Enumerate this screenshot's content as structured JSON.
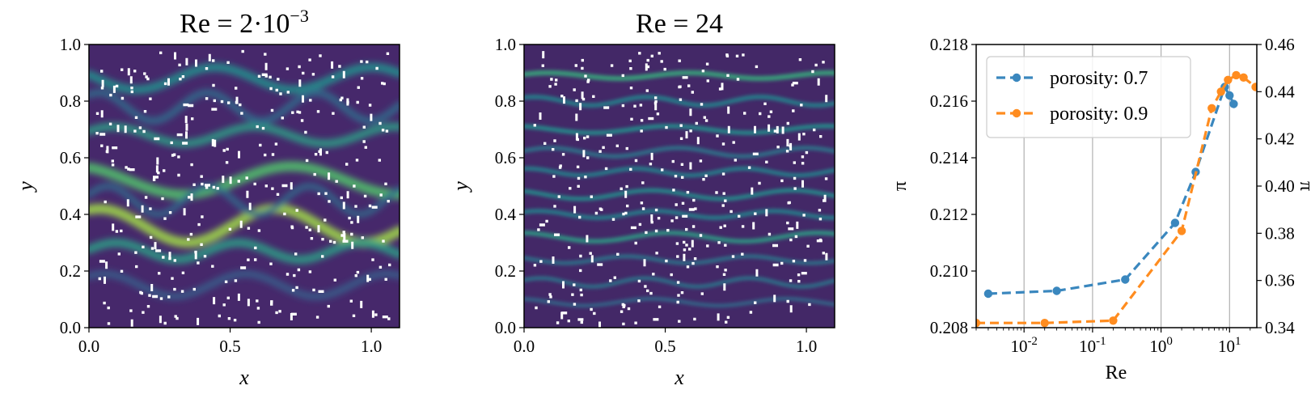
{
  "chart_data": [
    {
      "type": "heatmap",
      "title": "Re = 2·10",
      "title_exp": "−3",
      "xlabel": "x",
      "ylabel": "y",
      "xlim": [
        0.0,
        1.1
      ],
      "ylim": [
        0.0,
        1.0
      ],
      "xticks": [
        "0.0",
        "0.5",
        "1.0"
      ],
      "yticks": [
        "0.0",
        "0.2",
        "0.4",
        "0.6",
        "0.8",
        "1.0"
      ],
      "colormap": [
        "#440154",
        "#3b528b",
        "#21908d",
        "#5dc863",
        "#fde725"
      ],
      "channels": [
        {
          "y0": 0.68,
          "amp": 0.03,
          "freq": 2.0,
          "phase": 0.5,
          "w": 0.028,
          "a": 0.55
        },
        {
          "y0": 0.36,
          "amp": 0.06,
          "freq": 1.6,
          "phase": 1.2,
          "w": 0.035,
          "a": 0.85
        },
        {
          "y0": 0.52,
          "amp": 0.05,
          "freq": 1.3,
          "phase": 2.0,
          "w": 0.035,
          "a": 0.7
        },
        {
          "y0": 0.27,
          "amp": 0.03,
          "freq": 2.3,
          "phase": 0.2,
          "w": 0.03,
          "a": 0.55
        },
        {
          "y0": 0.88,
          "amp": 0.04,
          "freq": 1.8,
          "phase": 2.8,
          "w": 0.03,
          "a": 0.5
        },
        {
          "y0": 0.78,
          "amp": 0.05,
          "freq": 2.6,
          "phase": 1.0,
          "w": 0.025,
          "a": 0.35
        },
        {
          "y0": 0.15,
          "amp": 0.04,
          "freq": 2.0,
          "phase": 0.9,
          "w": 0.025,
          "a": 0.3
        },
        {
          "y0": 0.45,
          "amp": 0.05,
          "freq": 2.8,
          "phase": 0.4,
          "w": 0.022,
          "a": 0.35
        }
      ]
    },
    {
      "type": "heatmap",
      "title": "Re = 24",
      "xlabel": "x",
      "ylabel": "y",
      "xlim": [
        0.0,
        1.1
      ],
      "ylim": [
        0.0,
        1.0
      ],
      "xticks": [
        "0.0",
        "0.5",
        "1.0"
      ],
      "yticks": [
        "0.0",
        "0.2",
        "0.4",
        "0.6",
        "0.8",
        "1.0"
      ],
      "colormap": [
        "#440154",
        "#3b528b",
        "#21908d",
        "#5dc863",
        "#fde725"
      ],
      "channels": [
        {
          "y0": 0.89,
          "amp": 0.01,
          "freq": 2.0,
          "phase": 0.5,
          "w": 0.018,
          "a": 0.6
        },
        {
          "y0": 0.8,
          "amp": 0.015,
          "freq": 2.5,
          "phase": 1.0,
          "w": 0.016,
          "a": 0.45
        },
        {
          "y0": 0.7,
          "amp": 0.012,
          "freq": 1.8,
          "phase": 2.0,
          "w": 0.016,
          "a": 0.5
        },
        {
          "y0": 0.62,
          "amp": 0.015,
          "freq": 2.2,
          "phase": 0.3,
          "w": 0.015,
          "a": 0.4
        },
        {
          "y0": 0.55,
          "amp": 0.012,
          "freq": 2.6,
          "phase": 1.4,
          "w": 0.015,
          "a": 0.45
        },
        {
          "y0": 0.47,
          "amp": 0.015,
          "freq": 2.0,
          "phase": 2.2,
          "w": 0.015,
          "a": 0.5
        },
        {
          "y0": 0.4,
          "amp": 0.012,
          "freq": 2.4,
          "phase": 0.8,
          "w": 0.015,
          "a": 0.45
        },
        {
          "y0": 0.32,
          "amp": 0.015,
          "freq": 1.9,
          "phase": 1.7,
          "w": 0.016,
          "a": 0.55
        },
        {
          "y0": 0.24,
          "amp": 0.012,
          "freq": 2.3,
          "phase": 2.6,
          "w": 0.014,
          "a": 0.4
        },
        {
          "y0": 0.16,
          "amp": 0.015,
          "freq": 2.7,
          "phase": 0.6,
          "w": 0.014,
          "a": 0.4
        },
        {
          "y0": 0.09,
          "amp": 0.012,
          "freq": 2.1,
          "phase": 1.9,
          "w": 0.013,
          "a": 0.35
        }
      ]
    },
    {
      "type": "line",
      "xlabel": "Re",
      "ylabel_left": "π",
      "ylabel_right": "π",
      "xscale": "log",
      "xlim": [
        0.002,
        25
      ],
      "ylim_left": [
        0.208,
        0.218
      ],
      "ylim_right": [
        0.34,
        0.46
      ],
      "xticks": [
        {
          "value": 0.01,
          "base": "10",
          "exp": "-2"
        },
        {
          "value": 0.1,
          "base": "10",
          "exp": "-1"
        },
        {
          "value": 1,
          "base": "10",
          "exp": "0"
        },
        {
          "value": 10,
          "base": "10",
          "exp": "1"
        }
      ],
      "yticks_left": [
        "0.208",
        "0.210",
        "0.212",
        "0.214",
        "0.216",
        "0.218"
      ],
      "yticks_right": [
        "0.34",
        "0.36",
        "0.38",
        "0.40",
        "0.42",
        "0.44",
        "0.46"
      ],
      "grid": "vertical",
      "legend": "top-left",
      "left_color": "#3a87be",
      "right_color": "#ff8c1f",
      "series": [
        {
          "name": "porosity: 0.7",
          "axis": "left",
          "color": "#3a87be",
          "x": [
            0.003,
            0.03,
            0.3,
            1.6,
            3.2,
            8.5,
            10,
            11.5
          ],
          "y": [
            0.2092,
            0.2093,
            0.2097,
            0.2117,
            0.2135,
            0.2165,
            0.2162,
            0.2159
          ]
        },
        {
          "name": "porosity: 0.9",
          "axis": "right",
          "color": "#ff8c1f",
          "x": [
            0.002,
            0.02,
            0.2,
            2.0,
            5.5,
            7.5,
            9.5,
            12.5,
            16,
            24
          ],
          "y": [
            0.342,
            0.342,
            0.343,
            0.381,
            0.433,
            0.44,
            0.445,
            0.447,
            0.446,
            0.442
          ]
        }
      ]
    }
  ]
}
